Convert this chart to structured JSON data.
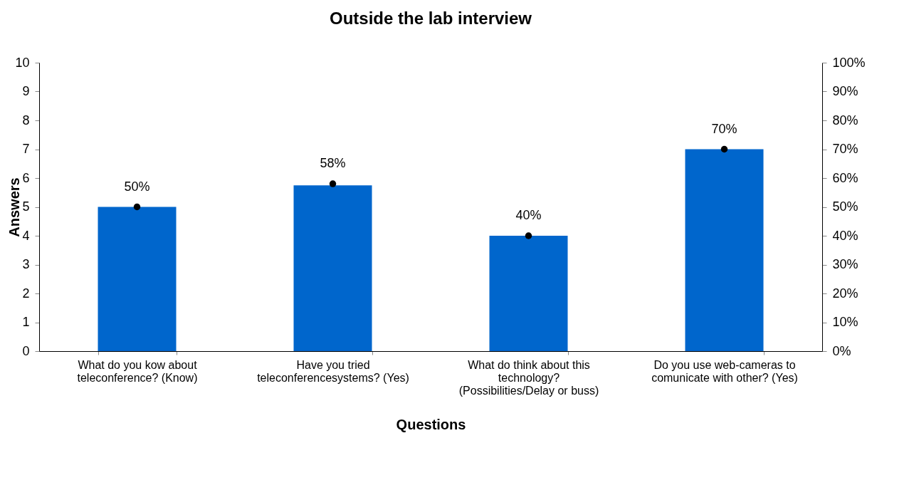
{
  "chart_data": {
    "type": "bar",
    "title": "Outside the lab interview",
    "xlabel": "Questions",
    "ylabel": "Answers",
    "categories": [
      "What do you kow about teleconference? (Know)",
      "Have you tried teleconferencesystems? (Yes)",
      "What do think about this technology? (Possibilities/Delay or buss)",
      "Do you use web-cameras to comunicate with other? (Yes)"
    ],
    "series": [
      {
        "color": "#0066cc",
        "values": [
          5,
          5.75,
          4,
          7
        ]
      },
      {
        "type": "scatter",
        "axis": "y2",
        "color": "#000000",
        "marker": "circle",
        "values": [
          50,
          58,
          40,
          70
        ],
        "value_labels": [
          "50%",
          "58%",
          "40%",
          "70%"
        ]
      }
    ],
    "ylim": [
      0,
      10
    ],
    "yticks": [
      0,
      1,
      2,
      3,
      4,
      5,
      6,
      7,
      8,
      9,
      10
    ],
    "y2lim": [
      0,
      100
    ],
    "y2ticks": [
      {
        "value": 0,
        "label": "0%"
      },
      {
        "value": 10,
        "label": "10%"
      },
      {
        "value": 20,
        "label": "20%"
      },
      {
        "value": 30,
        "label": "30%"
      },
      {
        "value": 40,
        "label": "40%"
      },
      {
        "value": 50,
        "label": "50%"
      },
      {
        "value": 60,
        "label": "60%"
      },
      {
        "value": 70,
        "label": "70%"
      },
      {
        "value": 80,
        "label": "80%"
      },
      {
        "value": 90,
        "label": "90%"
      },
      {
        "value": 100,
        "label": "100%"
      }
    ],
    "grid": false
  }
}
